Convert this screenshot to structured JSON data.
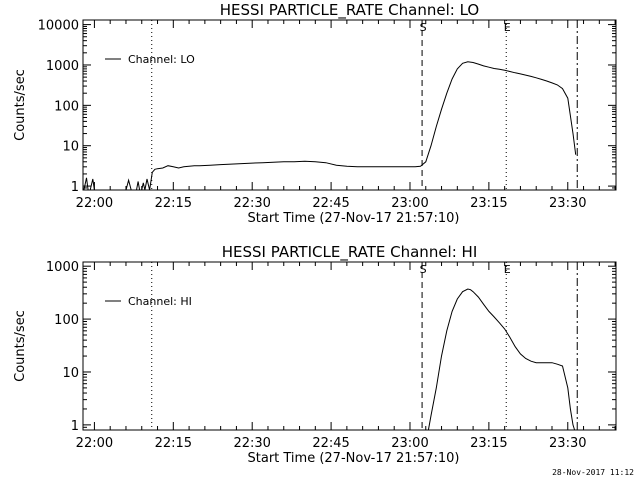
{
  "footer": {
    "timestamp": "28-Nov-2017 11:12"
  },
  "chart_data": [
    {
      "type": "line",
      "title": "HESSI PARTICLE_RATE Channel: LO",
      "xlabel": "Start Time (27-Nov-17 21:57:10)",
      "ylabel": "Counts/sec",
      "yscale": "log",
      "ylim": [
        0.8,
        13000
      ],
      "xlim_minutes": [
        -2.17,
        99.17
      ],
      "x_tick_labels": [
        "22:00",
        "22:15",
        "22:30",
        "22:45",
        "23:00",
        "23:15",
        "23:30"
      ],
      "x_tick_minutes": [
        0,
        15,
        30,
        45,
        60,
        75,
        90
      ],
      "y_tick_labels": [
        "1",
        "10",
        "100",
        "1000",
        "10000"
      ],
      "y_tick_values": [
        1,
        10,
        100,
        1000,
        10000
      ],
      "legend": {
        "label": "Channel: LO",
        "position": "top-left"
      },
      "markers": [
        {
          "label": "",
          "minute": 10.9,
          "style": "dotted"
        },
        {
          "label": "S",
          "minute": 62.3,
          "style": "dashed"
        },
        {
          "label": "E",
          "minute": 78.3,
          "style": "dotted"
        },
        {
          "label": "",
          "minute": 91.8,
          "style": "dashdot"
        }
      ],
      "series": [
        {
          "x": [
            -2.0,
            -1.5,
            -1.2,
            -0.8,
            -0.3,
            0.0,
            0.5,
            1.0,
            2.0,
            3.0,
            4.0,
            5.0,
            6.0,
            6.5,
            7.0,
            7.2,
            7.5,
            8.0,
            8.3,
            8.6,
            9.0,
            9.3,
            9.6,
            10.0,
            10.5,
            11.0,
            11.5,
            12.0,
            13.0,
            14.0,
            15.0,
            16.0,
            17.0,
            18.0,
            19.0,
            20.0,
            22.0,
            24.0,
            26.0,
            28.0,
            30.0,
            32.0,
            34.0,
            36.0,
            38.0,
            40.0,
            42.0,
            44.0,
            46.0,
            48.0,
            50.0,
            52.0,
            54.0,
            56.0,
            58.0,
            60.0,
            61.0,
            62.0,
            63.0,
            64.0,
            65.0,
            66.0,
            67.0,
            68.0,
            69.0,
            70.0,
            71.0,
            72.0,
            73.0,
            74.0,
            75.0,
            76.0,
            77.0,
            78.0,
            79.0,
            80.0,
            81.0,
            82.0,
            83.0,
            84.0,
            85.0,
            86.0,
            87.0,
            88.0,
            89.0,
            90.0,
            91.0,
            91.5
          ],
          "y": [
            0.8,
            1.6,
            0.8,
            0.8,
            1.5,
            0.8,
            0.8,
            0.8,
            0.8,
            0.8,
            0.8,
            0.8,
            0.8,
            1.4,
            0.8,
            0.8,
            0.8,
            0.8,
            1.3,
            0.8,
            0.8,
            1.2,
            0.8,
            1.5,
            0.8,
            2.2,
            2.6,
            2.7,
            2.8,
            3.2,
            3.0,
            2.8,
            3.0,
            3.1,
            3.2,
            3.2,
            3.3,
            3.4,
            3.5,
            3.6,
            3.7,
            3.8,
            3.9,
            4.0,
            4.0,
            4.1,
            4.0,
            3.8,
            3.3,
            3.1,
            3.0,
            3.0,
            3.0,
            3.0,
            3.0,
            3.0,
            3.0,
            3.1,
            4.0,
            10,
            30,
            80,
            200,
            450,
            800,
            1100,
            1200,
            1150,
            1050,
            950,
            880,
            820,
            780,
            740,
            690,
            640,
            600,
            560,
            520,
            480,
            440,
            400,
            360,
            320,
            260,
            150,
            20,
            6
          ]
        }
      ]
    },
    {
      "type": "line",
      "title": "HESSI PARTICLE_RATE Channel: HI",
      "xlabel": "Start Time (27-Nov-17 21:57:10)",
      "ylabel": "Counts/sec",
      "yscale": "log",
      "ylim": [
        0.8,
        1200
      ],
      "xlim_minutes": [
        -2.17,
        99.17
      ],
      "x_tick_labels": [
        "22:00",
        "22:15",
        "22:30",
        "22:45",
        "23:00",
        "23:15",
        "23:30"
      ],
      "x_tick_minutes": [
        0,
        15,
        30,
        45,
        60,
        75,
        90
      ],
      "y_tick_labels": [
        "1",
        "10",
        "100",
        "1000"
      ],
      "y_tick_values": [
        1,
        10,
        100,
        1000
      ],
      "legend": {
        "label": "Channel: HI",
        "position": "top-left"
      },
      "markers": [
        {
          "label": "",
          "minute": 10.9,
          "style": "dotted"
        },
        {
          "label": "S",
          "minute": 62.3,
          "style": "dashed"
        },
        {
          "label": "E",
          "minute": 78.3,
          "style": "dotted"
        },
        {
          "label": "",
          "minute": 91.8,
          "style": "dashdot"
        }
      ],
      "series": [
        {
          "x": [
            63.5,
            64.0,
            65.0,
            66.0,
            67.0,
            68.0,
            69.0,
            70.0,
            71.0,
            71.5,
            72.0,
            73.0,
            74.0,
            75.0,
            76.0,
            77.0,
            78.0,
            79.0,
            80.0,
            81.0,
            82.0,
            83.0,
            84.0,
            85.0,
            86.0,
            87.0,
            88.0,
            89.0,
            90.0,
            90.5,
            91.0,
            91.3
          ],
          "y": [
            0.8,
            1.5,
            5,
            20,
            60,
            140,
            240,
            330,
            370,
            360,
            330,
            260,
            190,
            140,
            110,
            85,
            65,
            45,
            30,
            22,
            18,
            16,
            15,
            15,
            15,
            15,
            14,
            13,
            5,
            2,
            1,
            0.8
          ]
        }
      ]
    }
  ]
}
